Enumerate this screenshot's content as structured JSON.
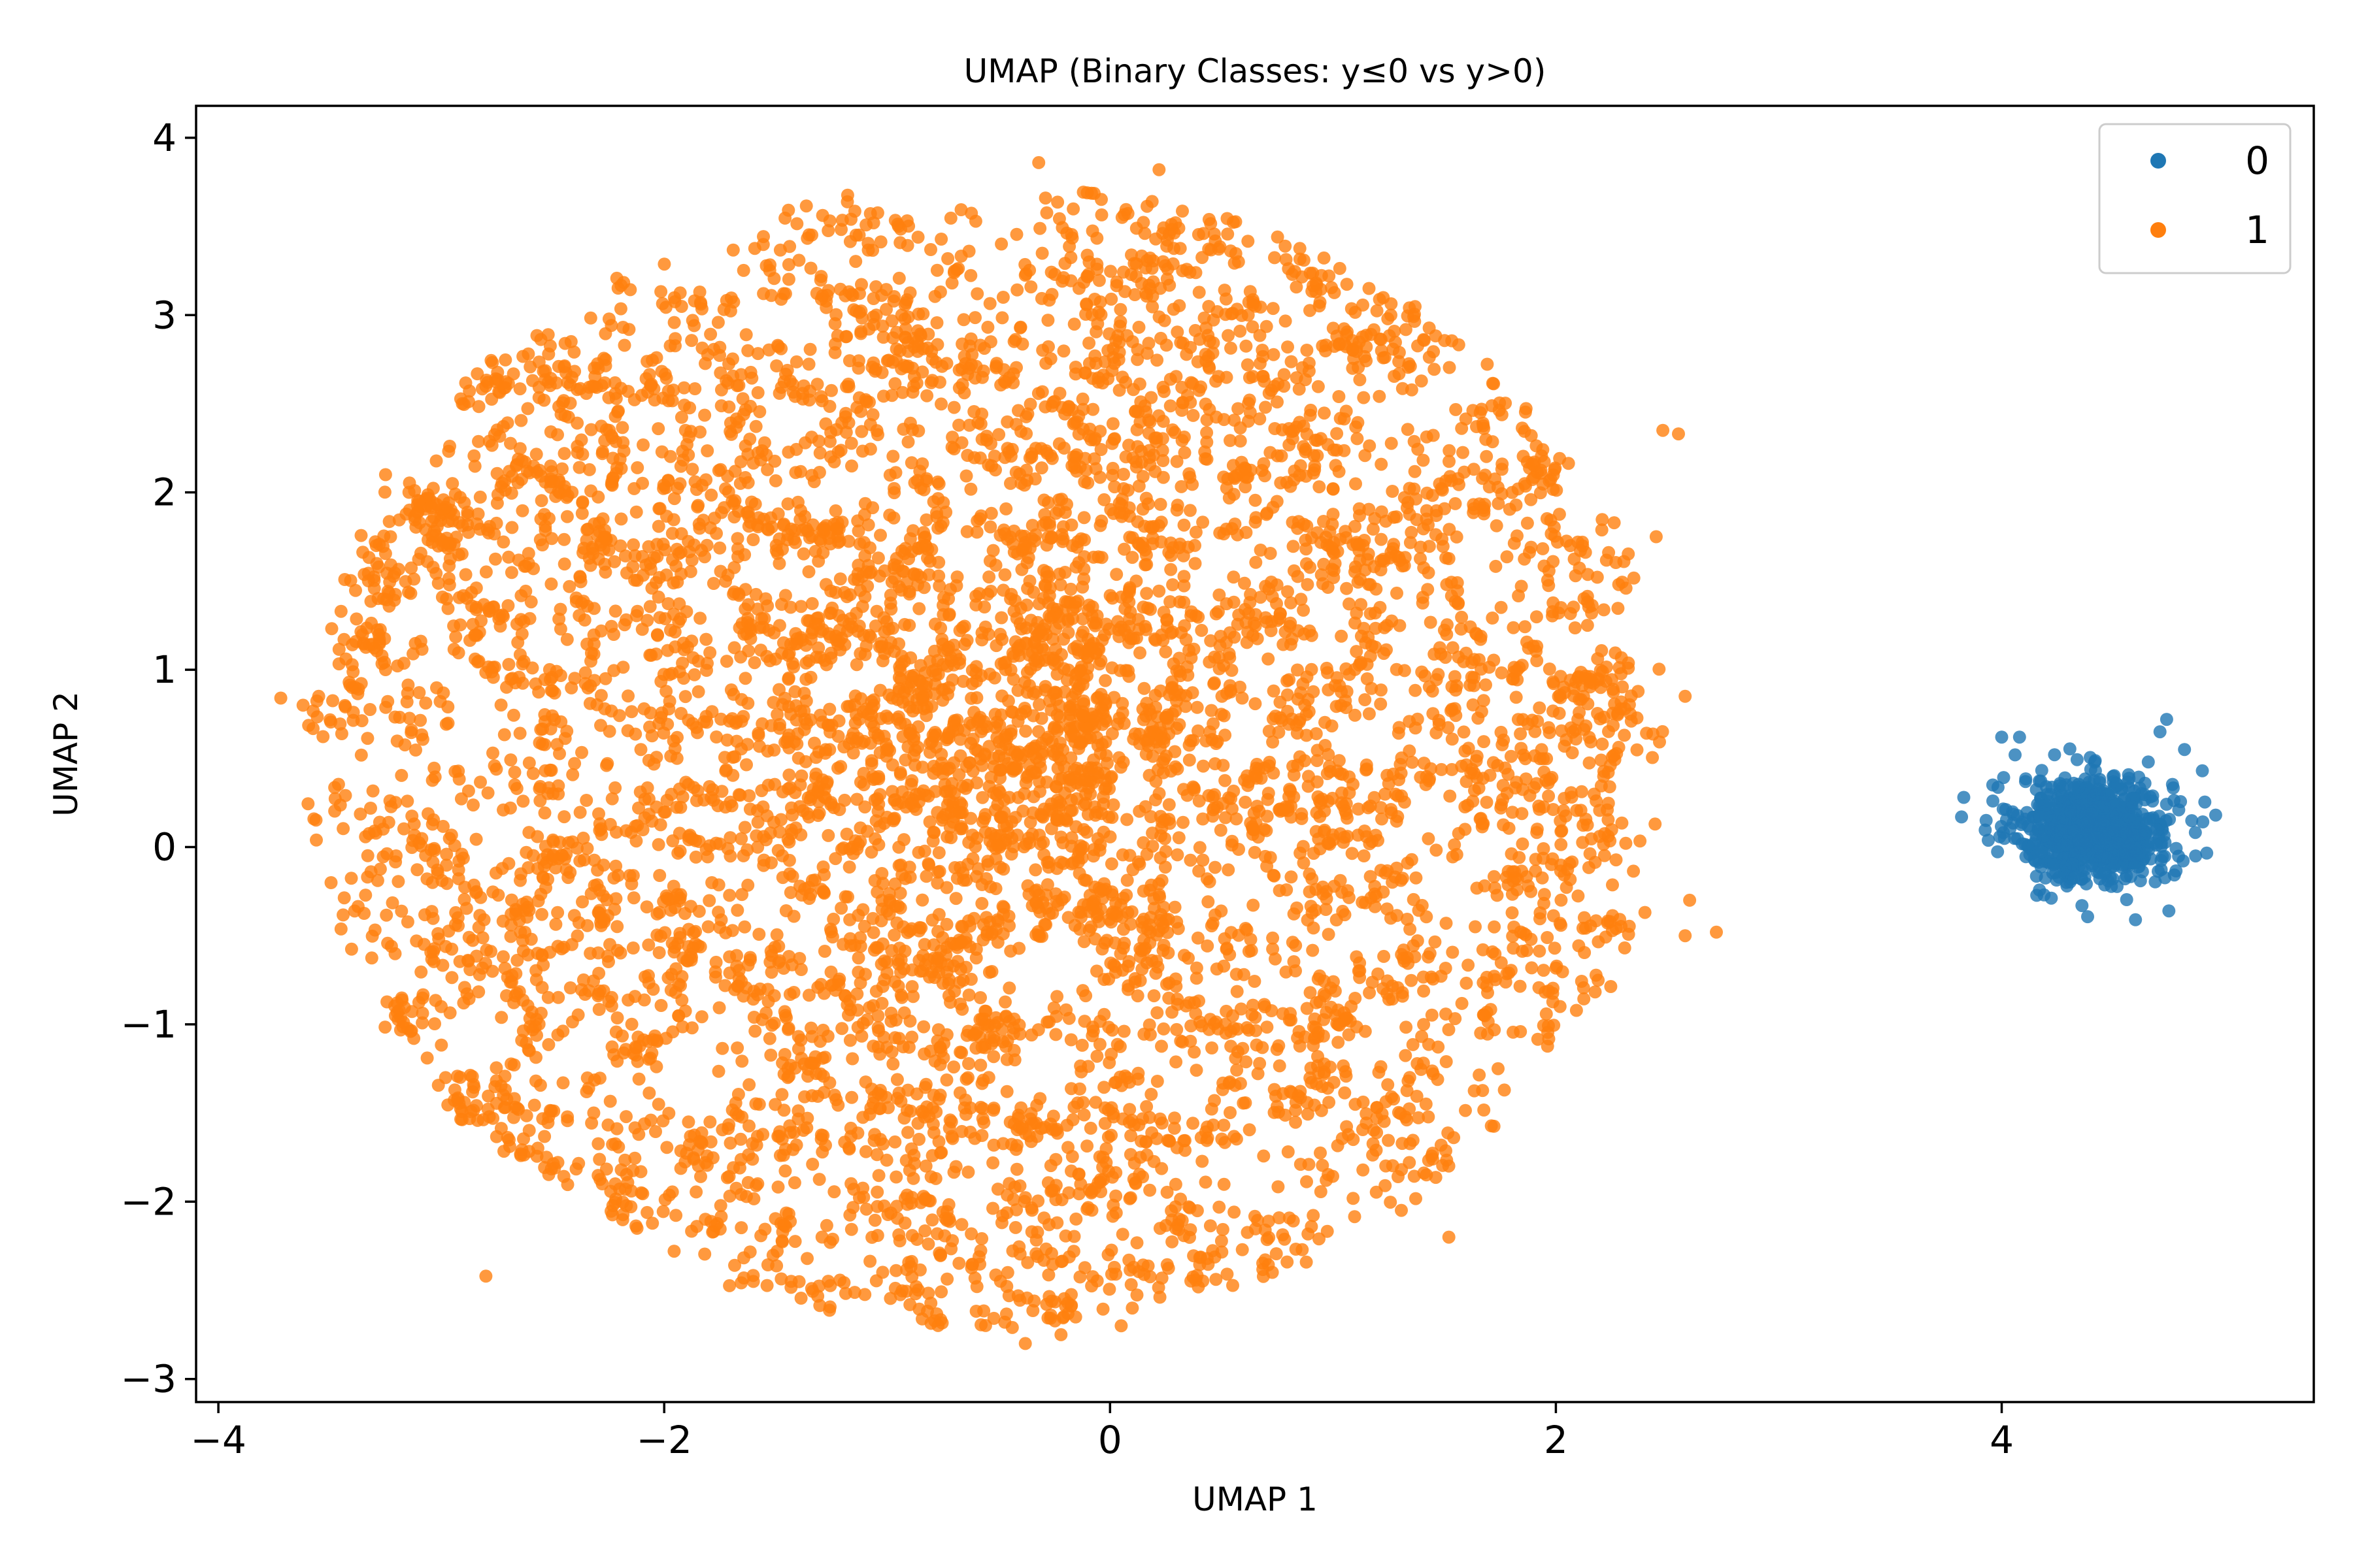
{
  "chart_data": {
    "type": "scatter",
    "title": "UMAP (Binary Classes: y≤0 vs y>0)",
    "xlabel": "UMAP 1",
    "ylabel": "UMAP 2",
    "xlim": [
      -4.1,
      5.4
    ],
    "ylim": [
      -3.13,
      4.18
    ],
    "xticks": [
      -4,
      -2,
      0,
      2,
      4
    ],
    "yticks": [
      -3,
      -2,
      -1,
      0,
      1,
      2,
      3,
      4
    ],
    "grid": false,
    "legend_position": "top-right",
    "series": [
      {
        "name": "0",
        "color": "#1f77b4",
        "opacity": 0.8,
        "cluster": {
          "shape": "blob",
          "center": [
            4.42,
            0.1
          ],
          "spread": [
            0.17,
            0.15
          ],
          "count": 800,
          "extent_x": [
            3.83,
            4.96
          ],
          "extent_y": [
            -0.45,
            0.73
          ]
        },
        "outliers": [
          [
            3.83,
            0.28
          ],
          [
            3.82,
            0.17
          ],
          [
            3.93,
            0.15
          ],
          [
            3.96,
            0.35
          ],
          [
            4.0,
            0.62
          ],
          [
            4.08,
            0.62
          ],
          [
            4.06,
            0.52
          ],
          [
            4.96,
            0.18
          ],
          [
            4.9,
            0.43
          ],
          [
            4.82,
            0.55
          ],
          [
            4.74,
            0.72
          ],
          [
            4.71,
            0.65
          ],
          [
            4.75,
            -0.36
          ],
          [
            4.6,
            -0.41
          ],
          [
            4.36,
            -0.33
          ],
          [
            4.19,
            -0.27
          ],
          [
            4.87,
            -0.05
          ]
        ]
      },
      {
        "name": "1",
        "color": "#ff7f0e",
        "opacity": 0.8,
        "cluster": {
          "shape": "disc",
          "center": [
            -0.55,
            0.52
          ],
          "radius_x": 3.05,
          "radius_y": 3.2,
          "count": 7000,
          "extent_x": [
            -3.72,
            2.72
          ],
          "extent_y": [
            -2.8,
            3.86
          ]
        },
        "outliers": [
          [
            -3.72,
            0.84
          ],
          [
            -3.62,
            0.8
          ],
          [
            -3.55,
            0.85
          ],
          [
            -3.4,
            0.9
          ],
          [
            -0.32,
            3.86
          ],
          [
            0.22,
            3.82
          ],
          [
            -0.38,
            -2.8
          ],
          [
            -0.22,
            -2.75
          ],
          [
            0.05,
            -2.7
          ],
          [
            2.72,
            -0.48
          ],
          [
            2.58,
            -0.5
          ],
          [
            2.6,
            -0.3
          ],
          [
            2.48,
            2.35
          ],
          [
            2.55,
            2.33
          ],
          [
            2.45,
            1.75
          ],
          [
            -2.8,
            -2.42
          ],
          [
            -1.6,
            -2.45
          ],
          [
            1.52,
            -2.2
          ],
          [
            2.58,
            0.85
          ],
          [
            -3.1,
            1.95
          ],
          [
            -2.95,
            2.05
          ],
          [
            -3.25,
            2.1
          ]
        ]
      }
    ]
  }
}
